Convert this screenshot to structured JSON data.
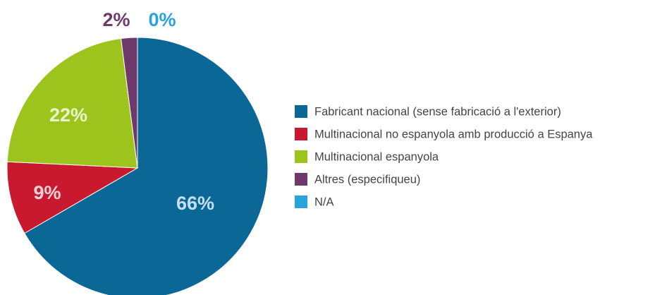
{
  "chart_data": {
    "type": "pie",
    "categories": [
      "Fabricant nacional (sense fabricació a l'exterior)",
      "Multinacional no espanyola amb producció a Espanya",
      "Multinacional espanyola",
      "Altres (especifiqueu)",
      "N/A"
    ],
    "values": [
      66,
      9,
      22,
      2,
      0
    ],
    "value_labels": [
      "66%",
      "9%",
      "22%",
      "2%",
      "0%"
    ],
    "colors": [
      "#0a6796",
      "#c8192e",
      "#9dc31d",
      "#6e3a6b",
      "#29a3dc"
    ],
    "legend": "right"
  }
}
